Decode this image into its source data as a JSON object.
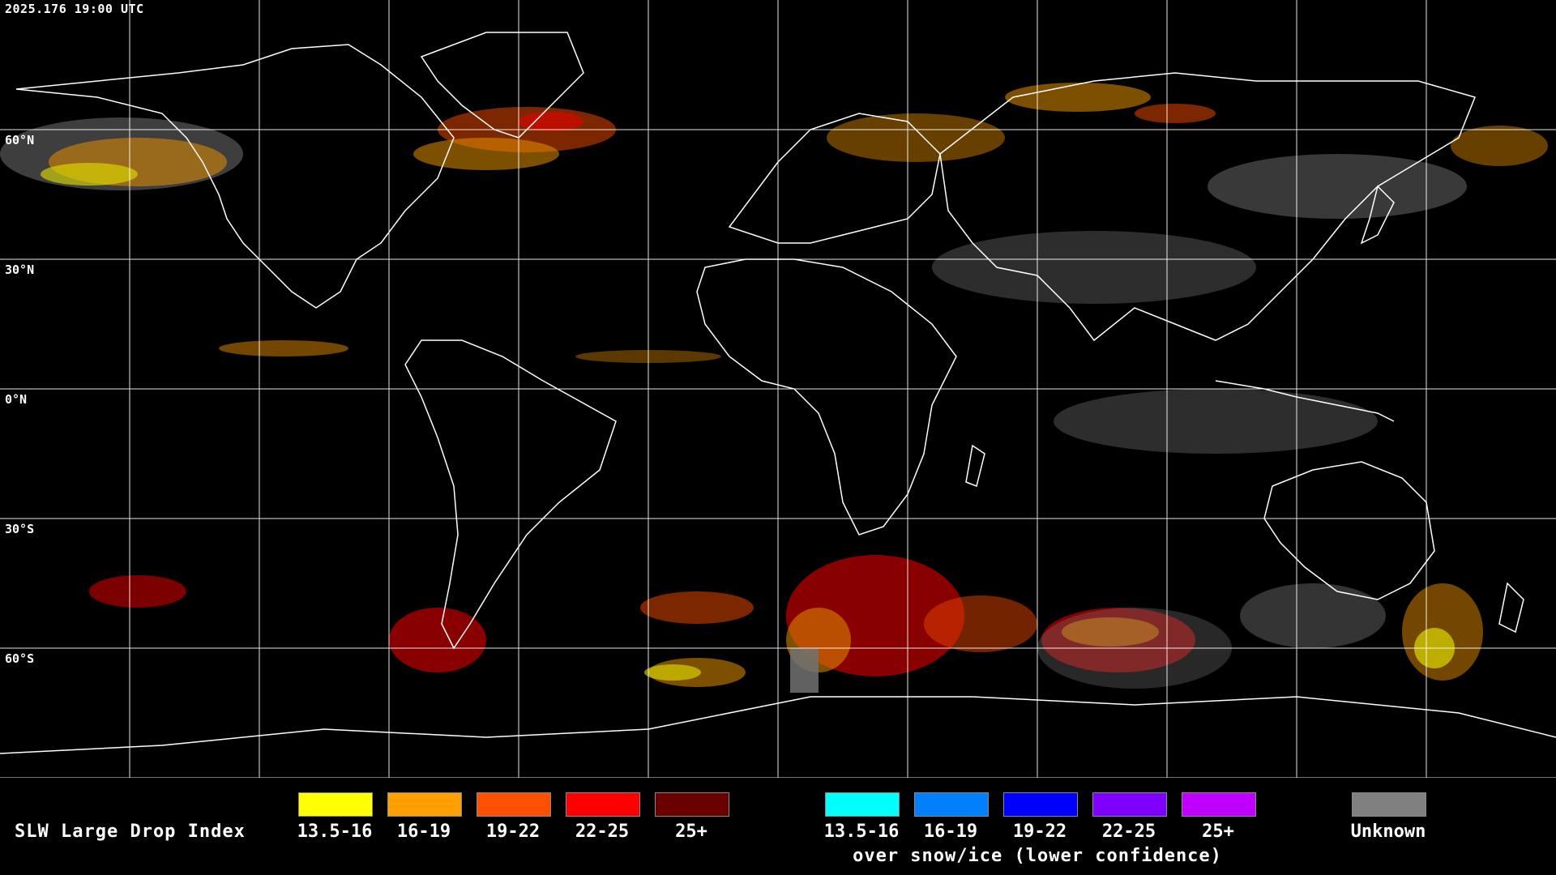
{
  "timestamp": "2025.176 19:00 UTC",
  "latitude_labels": [
    {
      "label": "60°N",
      "lat": 60
    },
    {
      "label": "30°N",
      "lat": 30
    },
    {
      "label": "0°N",
      "lat": 0
    },
    {
      "label": "30°S",
      "lat": -30
    },
    {
      "label": "60°S",
      "lat": -60
    }
  ],
  "legend": {
    "title": "SLW Large Drop Index",
    "normal": [
      {
        "label": "13.5-16",
        "color": "#ffff00"
      },
      {
        "label": "16-19",
        "color": "#ffa000"
      },
      {
        "label": "19-22",
        "color": "#ff5000"
      },
      {
        "label": "22-25",
        "color": "#ff0000"
      },
      {
        "label": "25+",
        "color": "#6a0000"
      }
    ],
    "snow_ice": [
      {
        "label": "13.5-16",
        "color": "#00ffff"
      },
      {
        "label": "16-19",
        "color": "#0080ff"
      },
      {
        "label": "19-22",
        "color": "#0000ff"
      },
      {
        "label": "22-25",
        "color": "#8000ff"
      },
      {
        "label": "25+",
        "color": "#c000ff"
      }
    ],
    "snow_note": "over snow/ice (lower confidence)",
    "unknown": {
      "label": "Unknown",
      "color": "#808080"
    }
  }
}
